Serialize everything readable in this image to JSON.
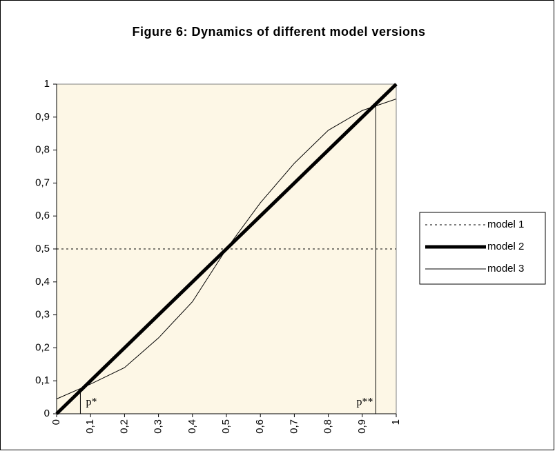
{
  "chart_data": {
    "type": "line",
    "title": "Figure 6: Dynamics of different model versions",
    "x": [
      0,
      0.1,
      0.2,
      0.3,
      0.4,
      0.5,
      0.6,
      0.7,
      0.8,
      0.9,
      1
    ],
    "series": [
      {
        "name": "model 1",
        "color": "#000000",
        "style": "dotted",
        "values": [
          0.5,
          0.5,
          0.5,
          0.5,
          0.5,
          0.5,
          0.5,
          0.5,
          0.5,
          0.5,
          0.5
        ]
      },
      {
        "name": "model 2",
        "color": "#000000",
        "style": "thick",
        "values": [
          0,
          0.1,
          0.2,
          0.3,
          0.4,
          0.5,
          0.6,
          0.7,
          0.8,
          0.9,
          1
        ]
      },
      {
        "name": "model 3",
        "color": "#000000",
        "style": "thin",
        "values": [
          0.045,
          0.09,
          0.14,
          0.23,
          0.34,
          0.5,
          0.64,
          0.76,
          0.86,
          0.92,
          0.955
        ]
      }
    ],
    "xlim": [
      0,
      1
    ],
    "ylim": [
      0,
      1
    ],
    "xticks": [
      0,
      {
        "value": 0.1,
        "label": "0,1"
      },
      {
        "value": 0.2,
        "label": "0,2"
      },
      {
        "value": 0.3,
        "label": "0,3"
      },
      {
        "value": 0.4,
        "label": "0,4"
      },
      {
        "value": 0.5,
        "label": "0,5"
      },
      {
        "value": 0.6,
        "label": "0,6"
      },
      {
        "value": 0.7,
        "label": "0,7"
      },
      {
        "value": 0.8,
        "label": "0,8"
      },
      {
        "value": 0.9,
        "label": "0,9"
      },
      1
    ],
    "yticks": [
      0,
      {
        "value": 0.1,
        "label": "0,1"
      },
      {
        "value": 0.2,
        "label": "0,2"
      },
      {
        "value": 0.3,
        "label": "0,3"
      },
      {
        "value": 0.4,
        "label": "0,4"
      },
      {
        "value": 0.5,
        "label": "0,5"
      },
      {
        "value": 0.6,
        "label": "0,6"
      },
      {
        "value": 0.7,
        "label": "0,7"
      },
      {
        "value": 0.8,
        "label": "0,8"
      },
      {
        "value": 0.9,
        "label": "0,9"
      },
      1
    ],
    "annotations": [
      {
        "text": "p*",
        "x": 0.07
      },
      {
        "text": "p**",
        "x": 0.94
      }
    ],
    "legend": "right",
    "background": "#fdf7e6"
  }
}
